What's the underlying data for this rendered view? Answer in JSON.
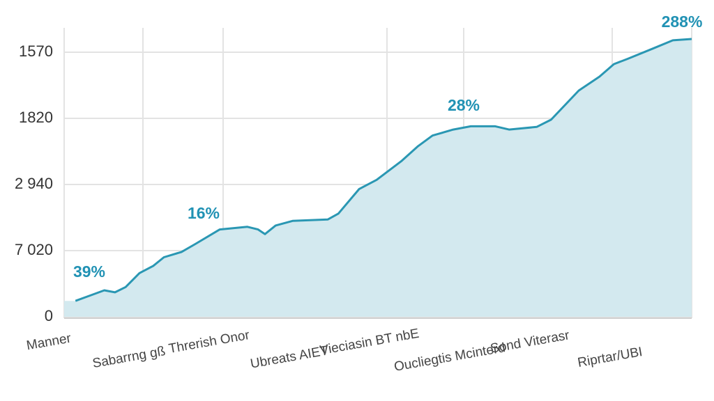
{
  "chart_data": {
    "type": "area",
    "categories": [
      "Manner",
      "Sabarrng gß",
      "Threrish Onor",
      "Ubreats AIET",
      "Vieciasin BT nbE",
      "Oucliegtis Mcinterd",
      "Sond Viterasr",
      "Riprtar/UBI"
    ],
    "annotations": [
      "39%",
      "16%",
      "28%",
      "288%"
    ],
    "xlim": [
      0,
      100
    ],
    "ylim": [
      0,
      4400
    ],
    "yticks": [
      0,
      {
        "value": 1000,
        "label": "7 020"
      },
      {
        "value": 2000,
        "label": "2 940"
      },
      {
        "value": 3000,
        "label": "1820"
      },
      {
        "value": 4000,
        "label": "1570"
      }
    ],
    "grid": true,
    "series": [
      {
        "color": "#2a97b3",
        "fill": "#d3e9ef",
        "x": [
          1.8,
          6.4,
          8.1,
          9.8,
          12,
          14.2,
          15.9,
          18.7,
          20.9,
          24.8,
          29.2,
          30.9,
          32,
          33.7,
          36.4,
          42,
          43.7,
          47,
          49.8,
          53.7,
          56.4,
          58.7,
          62,
          64.8,
          68.7,
          70.9,
          75.3,
          77.6,
          82,
          85.3,
          87.6,
          89.8,
          93.7,
          97,
          100
        ],
        "values": [
          240,
          400,
          370,
          450,
          660,
          770,
          900,
          980,
          1100,
          1320,
          1360,
          1320,
          1250,
          1380,
          1450,
          1470,
          1560,
          1930,
          2070,
          2350,
          2580,
          2740,
          2830,
          2880,
          2880,
          2830,
          2870,
          2980,
          3420,
          3630,
          3820,
          3900,
          4050,
          4180,
          4200
        ]
      }
    ]
  }
}
